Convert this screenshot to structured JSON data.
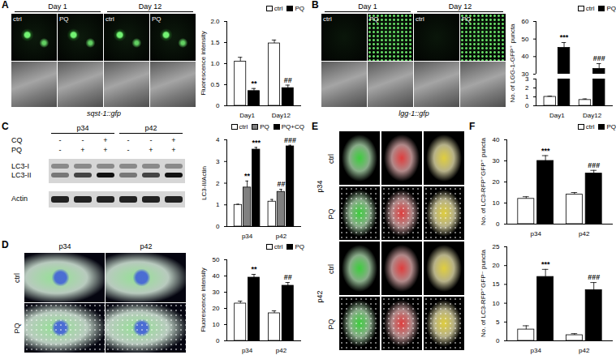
{
  "chart_data": [
    {
      "type": "bar",
      "categories": [
        "Day1",
        "Day12"
      ],
      "series": [
        {
          "name": "ctrl",
          "color": "#ffffff",
          "values": [
            1.05,
            1.48
          ],
          "errors": [
            0.1,
            0.08
          ]
        },
        {
          "name": "PQ",
          "color": "#000000",
          "values": [
            0.35,
            0.42
          ],
          "errors": [
            0.06,
            0.07
          ]
        }
      ],
      "y_label": "Fluorescence intensity",
      "ylim": [
        0,
        2
      ],
      "yticks": [
        0,
        0.5,
        {
          "value": 1,
          "label": "1.0"
        },
        1.5,
        {
          "value": 2,
          "label": "2.0"
        }
      ],
      "legend": "top-right",
      "annotations": [
        {
          "category": "Day1",
          "series": "PQ",
          "text": "**"
        },
        {
          "category": "Day12",
          "series": "PQ",
          "text": "##"
        }
      ]
    },
    {
      "type": "bar",
      "categories": [
        "Day1",
        "Day12"
      ],
      "series": [
        {
          "name": "ctrl",
          "color": "#ffffff",
          "values": [
            1.0,
            0.65
          ],
          "errors": [
            0.08,
            0.12
          ]
        },
        {
          "name": "PQ",
          "color": "#000000",
          "values": [
            45,
            33
          ],
          "errors": [
            3,
            3
          ]
        }
      ],
      "y_label": "No. of LGG-1-GFP⁺ puncta",
      "ylim": [
        0,
        60
      ],
      "yticks": [
        0,
        1,
        2,
        3,
        30,
        40,
        50,
        60
      ],
      "axis_break": [
        3,
        30
      ],
      "legend": "top-right",
      "annotations": [
        {
          "category": "Day1",
          "series": "PQ",
          "text": "***"
        },
        {
          "category": "Day12",
          "series": "PQ",
          "text": "###"
        }
      ]
    },
    {
      "type": "bar",
      "categories": [
        "p34",
        "p42"
      ],
      "series": [
        {
          "name": "ctrl",
          "color": "#ffffff",
          "values": [
            1.0,
            1.15
          ],
          "errors": [
            0.03,
            0.1
          ]
        },
        {
          "name": "PQ",
          "color": "#808080",
          "values": [
            1.8,
            1.6
          ],
          "errors": [
            0.3,
            0.12
          ]
        },
        {
          "name": "PQ+CQ",
          "color": "#000000",
          "values": [
            3.55,
            3.7
          ],
          "errors": [
            0.1,
            0.05
          ]
        }
      ],
      "y_label": "LC3-II/Actin",
      "ylim": [
        0,
        4
      ],
      "yticks": [
        0,
        1,
        2,
        3,
        4
      ],
      "legend": "top-right",
      "annotations": [
        {
          "category": "p34",
          "series": "PQ",
          "text": "**"
        },
        {
          "category": "p34",
          "series": "PQ+CQ",
          "text": "***"
        },
        {
          "category": "p42",
          "series": "PQ",
          "text": "##"
        },
        {
          "category": "p42",
          "series": "PQ+CQ",
          "text": "###"
        }
      ]
    },
    {
      "type": "bar",
      "categories": [
        "p34",
        "p42"
      ],
      "series": [
        {
          "name": "ctrl",
          "color": "#ffffff",
          "values": [
            23,
            17
          ],
          "errors": [
            1.5,
            1.5
          ]
        },
        {
          "name": "PQ",
          "color": "#000000",
          "values": [
            39,
            34
          ],
          "errors": [
            2,
            2
          ]
        }
      ],
      "y_label": "Fluorescence intensity",
      "ylim": [
        0,
        50
      ],
      "yticks": [
        0,
        10,
        20,
        30,
        40,
        50
      ],
      "legend": "top-right",
      "annotations": [
        {
          "category": "p34",
          "series": "PQ",
          "text": "**"
        },
        {
          "category": "p42",
          "series": "PQ",
          "text": "##"
        }
      ]
    },
    {
      "type": "bar",
      "categories": [
        "p34",
        "p42"
      ],
      "series": [
        {
          "name": "ctrl",
          "color": "#ffffff",
          "values": [
            12,
            14
          ],
          "errors": [
            1,
            1
          ]
        },
        {
          "name": "PQ",
          "color": "#000000",
          "values": [
            30,
            24
          ],
          "errors": [
            2.5,
            1.5
          ]
        }
      ],
      "y_label": "No. of LC3-RFP⁺GFP⁺ puncta",
      "ylim": [
        0,
        40
      ],
      "yticks": [
        0,
        10,
        20,
        30,
        40
      ],
      "legend": "top-right",
      "annotations": [
        {
          "category": "p34",
          "series": "PQ",
          "text": "***"
        },
        {
          "category": "p42",
          "series": "PQ",
          "text": "###"
        }
      ]
    },
    {
      "type": "bar",
      "categories": [
        "p34",
        "p42"
      ],
      "series": [
        {
          "name": "ctrl",
          "color": "#ffffff",
          "values": [
            3,
            1.5
          ],
          "errors": [
            1,
            0.4
          ]
        },
        {
          "name": "PQ",
          "color": "#000000",
          "values": [
            17,
            13.5
          ],
          "errors": [
            2,
            2
          ]
        }
      ],
      "y_label": "No. of LC3-RFP⁺GFP⁻ puncta",
      "ylim": [
        0,
        25
      ],
      "yticks": [
        0,
        5,
        10,
        15,
        20,
        25
      ],
      "annotations": [
        {
          "category": "p34",
          "series": "PQ",
          "text": "***"
        },
        {
          "category": "p42",
          "series": "PQ",
          "text": "###"
        }
      ]
    }
  ],
  "figure": {
    "panels": [
      {
        "label": "A",
        "images": {
          "groups": [
            "Day 1",
            "Day 12"
          ],
          "columns": [
            "ctrl",
            "PQ",
            "ctrl",
            "PQ"
          ],
          "caption": "sqst-1::gfp"
        }
      },
      {
        "label": "B",
        "images": {
          "groups": [
            "Day 1",
            "Day 12"
          ],
          "columns": [
            "ctrl",
            "PQ",
            "ctrl",
            "PQ"
          ],
          "caption": "lgg-1::gfp"
        }
      },
      {
        "label": "C",
        "blot": {
          "groups": [
            "p34",
            "p42"
          ],
          "conditions": [
            {
              "name": "CQ",
              "signs": [
                "-",
                "-",
                "+",
                "-",
                "-",
                "+"
              ]
            },
            {
              "name": "PQ",
              "signs": [
                "-",
                "+",
                "+",
                "-",
                "+",
                "+"
              ]
            }
          ],
          "bands": [
            "LC3-I",
            "LC3-II",
            "Actin"
          ]
        }
      },
      {
        "label": "D",
        "images": {
          "columns": [
            "p34",
            "p42"
          ],
          "rows": [
            "ctrl",
            "PQ"
          ]
        }
      },
      {
        "label": "E",
        "images": {
          "groups": [
            "p34",
            "p42"
          ],
          "rows": [
            "ctrl",
            "PQ",
            "ctrl",
            "PQ"
          ]
        }
      },
      {
        "label": "F"
      }
    ]
  }
}
